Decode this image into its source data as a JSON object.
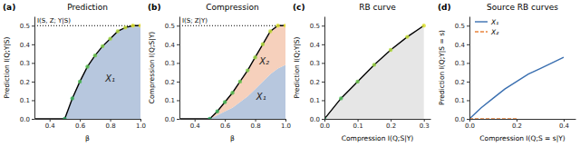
{
  "chart_data": [
    {
      "type": "area",
      "subtitle": "(a)",
      "title": "Prediction",
      "x_label": "β",
      "y_label": "Prediction I(Q;Y|S)",
      "xlim": [
        0.3,
        1.0
      ],
      "ylim": [
        0,
        0.55
      ],
      "xticks": [
        0.4,
        0.6,
        0.8,
        {
          "value": 1,
          "label": "1.0"
        }
      ],
      "yticks": [
        {
          "value": 0,
          "label": "0.0"
        },
        0.1,
        0.2,
        0.3,
        0.4,
        0.5
      ],
      "hlines": [
        {
          "y": 0.5,
          "label": "I(S, Z; Y|S)",
          "line_style": "dotted"
        }
      ],
      "annotations": [
        {
          "text": "X₁",
          "x": 0.8,
          "y": 0.2
        }
      ],
      "series": [
        {
          "type": "area",
          "color": "#b7c7de",
          "x": [
            0.3,
            0.4,
            0.5,
            0.55,
            0.6,
            0.65,
            0.7,
            0.75,
            0.8,
            0.85,
            0.9,
            0.95,
            1.0
          ],
          "values": [
            0,
            0,
            0,
            0.11,
            0.2,
            0.28,
            0.34,
            0.39,
            0.43,
            0.47,
            0.49,
            0.5,
            0.5
          ]
        },
        {
          "type": "line",
          "color": "#000000",
          "x": [
            0.3,
            0.4,
            0.5,
            0.55,
            0.6,
            0.65,
            0.7,
            0.75,
            0.8,
            0.85,
            0.9,
            0.95,
            1.0
          ],
          "values": [
            0,
            0,
            0,
            0.11,
            0.2,
            0.28,
            0.34,
            0.39,
            0.43,
            0.47,
            0.49,
            0.5,
            0.5
          ]
        },
        {
          "type": "scatter",
          "marker": "circle",
          "colors": [
            "#2ca25f",
            "#3bb05a",
            "#4cb856",
            "#5cbf52",
            "#6cc64e",
            "#82cc48",
            "#98d243",
            "#b0d83d",
            "#c6dd38",
            "#dde233",
            "#f0e530"
          ],
          "x": [
            0.5,
            0.55,
            0.6,
            0.65,
            0.7,
            0.75,
            0.8,
            0.85,
            0.9,
            0.95,
            1.0
          ],
          "values": [
            0,
            0.11,
            0.2,
            0.28,
            0.34,
            0.39,
            0.43,
            0.47,
            0.49,
            0.5,
            0.5
          ]
        }
      ]
    },
    {
      "type": "area",
      "subtitle": "(b)",
      "title": "Compression",
      "x_label": "β",
      "y_label": "Compression I(Q;S|Y)",
      "xlim": [
        0.3,
        1.0
      ],
      "ylim": [
        0,
        0.55
      ],
      "stacked": true,
      "xticks": [
        0.4,
        0.6,
        0.8,
        {
          "value": 1,
          "label": "1.0"
        }
      ],
      "yticks": [
        {
          "value": 0,
          "label": "0.0"
        },
        0.1,
        0.2,
        0.3,
        0.4,
        0.5
      ],
      "hlines": [
        {
          "y": 0.5,
          "label": "I(S; Z|Y)",
          "line_style": "dotted"
        }
      ],
      "annotations": [
        {
          "text": "X₁",
          "x": 0.84,
          "y": 0.1
        },
        {
          "text": "X₂",
          "x": 0.86,
          "y": 0.29
        }
      ],
      "series": [
        {
          "type": "area",
          "color": "#b7c7de",
          "x": [
            0.3,
            0.4,
            0.5,
            0.55,
            0.6,
            0.65,
            0.7,
            0.75,
            0.8,
            0.85,
            0.9,
            0.95,
            1.0
          ],
          "values": [
            0,
            0,
            0,
            0.02,
            0.04,
            0.06,
            0.09,
            0.12,
            0.16,
            0.2,
            0.24,
            0.27,
            0.29
          ]
        },
        {
          "type": "area",
          "color": "#f6d0bc",
          "x": [
            0.3,
            0.4,
            0.5,
            0.55,
            0.6,
            0.65,
            0.7,
            0.75,
            0.8,
            0.85,
            0.9,
            0.95,
            1.0
          ],
          "values": [
            0,
            0,
            0,
            0.02,
            0.05,
            0.08,
            0.11,
            0.14,
            0.17,
            0.2,
            0.23,
            0.23,
            0.21
          ]
        },
        {
          "type": "line",
          "color": "#000000",
          "x": [
            0.3,
            0.4,
            0.5,
            0.55,
            0.6,
            0.65,
            0.7,
            0.75,
            0.8,
            0.85,
            0.9,
            0.95,
            1.0
          ],
          "values": [
            0,
            0,
            0,
            0.04,
            0.09,
            0.14,
            0.2,
            0.26,
            0.33,
            0.4,
            0.47,
            0.5,
            0.5
          ]
        },
        {
          "type": "scatter",
          "marker": "circle",
          "colors": [
            "#2ca25f",
            "#3bb05a",
            "#4cb856",
            "#5cbf52",
            "#6cc64e",
            "#82cc48",
            "#98d243",
            "#b0d83d",
            "#c6dd38",
            "#dde233",
            "#f0e530"
          ],
          "x": [
            0.5,
            0.55,
            0.6,
            0.65,
            0.7,
            0.75,
            0.8,
            0.85,
            0.9,
            0.95,
            1.0
          ],
          "values": [
            0,
            0.04,
            0.09,
            0.14,
            0.2,
            0.26,
            0.33,
            0.4,
            0.47,
            0.5,
            0.5
          ]
        }
      ]
    },
    {
      "type": "line",
      "subtitle": "(c)",
      "title": "RB curve",
      "x_label": "Compression I(Q;S|Y)",
      "y_label": "Prediction I(Q;Y|S)",
      "xlim": [
        0,
        0.32
      ],
      "ylim": [
        0,
        0.55
      ],
      "xticks": [
        {
          "value": 0,
          "label": "0.0"
        },
        0.1,
        0.2,
        0.3
      ],
      "yticks": [
        {
          "value": 0,
          "label": "0.0"
        },
        0.1,
        0.2,
        0.3,
        0.4,
        0.5
      ],
      "series": [
        {
          "type": "area",
          "color": "#e6e6e6",
          "x": [
            0,
            0.05,
            0.1,
            0.15,
            0.2,
            0.25,
            0.3
          ],
          "values": [
            0,
            0.11,
            0.2,
            0.29,
            0.37,
            0.44,
            0.5
          ]
        },
        {
          "type": "line",
          "color": "#000000",
          "x": [
            0,
            0.05,
            0.1,
            0.15,
            0.2,
            0.25,
            0.3
          ],
          "values": [
            0,
            0.11,
            0.2,
            0.29,
            0.37,
            0.44,
            0.5
          ]
        },
        {
          "type": "scatter",
          "marker": "circle",
          "colors": [
            "#2ca25f",
            "#4cb856",
            "#6cc64e",
            "#98d243",
            "#b0d83d",
            "#c6dd38",
            "#dde233"
          ],
          "x": [
            0,
            0.05,
            0.1,
            0.15,
            0.2,
            0.25,
            0.3
          ],
          "values": [
            0,
            0.11,
            0.2,
            0.29,
            0.37,
            0.44,
            0.5
          ]
        }
      ]
    },
    {
      "type": "line",
      "subtitle": "(d)",
      "title": "Source RB curves",
      "x_label": "Compression I(Q;S = s|Y)",
      "y_label": "Prediction I(Q;Y|S = s)",
      "xlim": [
        0,
        0.45
      ],
      "ylim": [
        0,
        0.55
      ],
      "legend": "upper left",
      "xticks": [
        {
          "value": 0,
          "label": "0.0"
        },
        0.2,
        0.4
      ],
      "yticks": [
        {
          "value": 0,
          "label": "0.0"
        },
        0.1,
        0.2,
        0.3,
        0.4,
        0.5
      ],
      "series": [
        {
          "name": "X₁",
          "type": "line",
          "color": "#3a6fb0",
          "line_style": "solid",
          "x": [
            0,
            0.05,
            0.1,
            0.15,
            0.2,
            0.25,
            0.3,
            0.35,
            0.4
          ],
          "values": [
            0,
            0.06,
            0.11,
            0.16,
            0.2,
            0.24,
            0.27,
            0.3,
            0.33
          ]
        },
        {
          "name": "X₂",
          "type": "line",
          "color": "#e8843c",
          "line_style": "dashed",
          "x": [
            0,
            0.2
          ],
          "values": [
            0,
            0
          ]
        }
      ]
    }
  ]
}
